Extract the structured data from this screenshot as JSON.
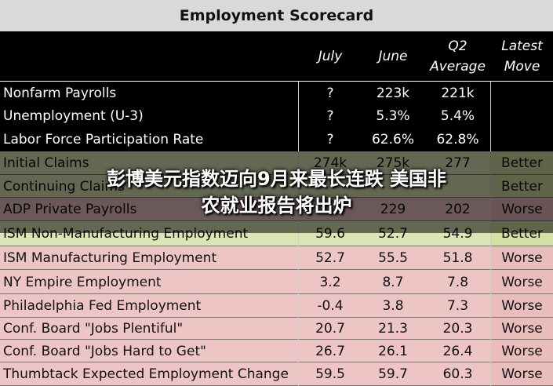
{
  "chart_data": {
    "type": "table",
    "title": "Employment Scorecard",
    "columns": [
      "July",
      "June",
      "Q2 Average",
      "Latest Move"
    ],
    "rows": [
      {
        "label": "Nonfarm Payrolls",
        "july": "?",
        "june": "223k",
        "q2": "221k",
        "move": "",
        "status": "none"
      },
      {
        "label": "Unemployment (U-3)",
        "july": "?",
        "june": "5.3%",
        "q2": "5.4%",
        "move": "",
        "status": "none"
      },
      {
        "label": "Labor Force Participation Rate",
        "july": "?",
        "june": "62.6%",
        "q2": "62.8%",
        "move": "",
        "status": "none"
      },
      {
        "label": "Initial Claims",
        "july": "274k",
        "june": "275k",
        "q2": "277",
        "move": "Better",
        "status": "better"
      },
      {
        "label": "Continuing Claims",
        "july": "",
        "june": "",
        "q2": "",
        "move": "Better",
        "status": "better"
      },
      {
        "label": "ADP Private Payrolls",
        "july": "",
        "june": "229",
        "q2": "202",
        "move": "Worse",
        "status": "worse"
      },
      {
        "label": "ISM Non-Manufacturing Employment",
        "july": "59.6",
        "june": "52.7",
        "q2": "54.9",
        "move": "Better",
        "status": "better"
      },
      {
        "label": "ISM Manufacturing Employment",
        "july": "52.7",
        "june": "55.5",
        "q2": "51.8",
        "move": "Worse",
        "status": "worse"
      },
      {
        "label": "NY Empire Employment",
        "july": "3.2",
        "june": "8.7",
        "q2": "7.8",
        "move": "Worse",
        "status": "worse"
      },
      {
        "label": "Philadelphia Fed Employment",
        "july": "-0.4",
        "june": "3.8",
        "q2": "7.3",
        "move": "Worse",
        "status": "worse"
      },
      {
        "label": "Conf. Board \"Jobs Plentiful\"",
        "july": "20.7",
        "june": "21.3",
        "q2": "20.3",
        "move": "Worse",
        "status": "worse"
      },
      {
        "label": "Conf. Board \"Jobs Hard to Get\"",
        "july": "26.7",
        "june": "26.1",
        "q2": "26.4",
        "move": "Worse",
        "status": "worse"
      },
      {
        "label": "Thumbtack Expected Employment Change",
        "july": "59.5",
        "june": "59.7",
        "q2": "60.3",
        "move": "Worse",
        "status": "worse"
      }
    ]
  },
  "header": {
    "july": "July",
    "june": "June",
    "q2_line1": "Q2",
    "q2_line2": "Average",
    "move_line1": "Latest",
    "move_line2": "Move"
  },
  "headline": {
    "line1": "彭博美元指数迈向9月来最长连跌 美国非",
    "line2": "农就业报告将出炉"
  },
  "colors": {
    "better_row": "#dbe6b5",
    "worse_row": "#ecc5c4",
    "title_bar": "#d9d9d9"
  }
}
